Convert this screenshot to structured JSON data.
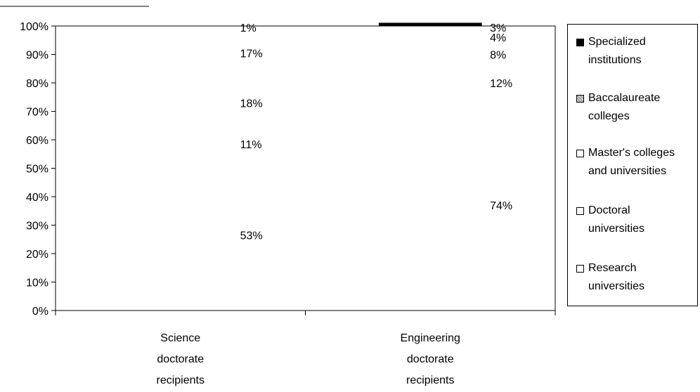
{
  "chart_data": {
    "type": "bar",
    "stacked": true,
    "percent": true,
    "title": "",
    "xlabel": "",
    "ylabel": "",
    "ylim": [
      0,
      100
    ],
    "y_ticks": [
      "0%",
      "10%",
      "20%",
      "30%",
      "40%",
      "50%",
      "60%",
      "70%",
      "80%",
      "90%",
      "100%"
    ],
    "categories": [
      [
        "Science",
        "doctorate",
        "recipients"
      ],
      [
        "Engineering",
        "doctorate",
        "recipients"
      ]
    ],
    "series": [
      {
        "name": "Research universities",
        "values": [
          53,
          74
        ],
        "labels": [
          "53%",
          "74%"
        ],
        "fill": "#ffffff"
      },
      {
        "name": "Doctoral universities",
        "values": [
          11,
          12
        ],
        "labels": [
          "11%",
          "12%"
        ],
        "fill": "#ffffff"
      },
      {
        "name": "Master's colleges and universities",
        "values": [
          18,
          8
        ],
        "labels": [
          "18%",
          "8%"
        ],
        "fill": "#efefef"
      },
      {
        "name": "Baccalaureate colleges",
        "values": [
          17,
          4
        ],
        "labels": [
          "17%",
          "4%"
        ],
        "fill": "#b8b8b8"
      },
      {
        "name": "Specialized institutions",
        "values": [
          1,
          3
        ],
        "labels": [
          "1%",
          "3%"
        ],
        "fill": "#000000"
      }
    ],
    "legend": {
      "position": "right",
      "items": [
        {
          "lines": [
            "Specialized",
            "institutions"
          ],
          "fill": "#000000"
        },
        {
          "lines": [
            "Baccalaureate",
            "colleges"
          ],
          "fill": "#b8b8b8"
        },
        {
          "lines": [
            "Master's colleges",
            "and universities"
          ],
          "fill": "#ffffff"
        },
        {
          "lines": [
            "Doctoral",
            "universities"
          ],
          "fill": "#ffffff"
        },
        {
          "lines": [
            "Research",
            "universities"
          ],
          "fill": "#ffffff"
        }
      ]
    }
  }
}
